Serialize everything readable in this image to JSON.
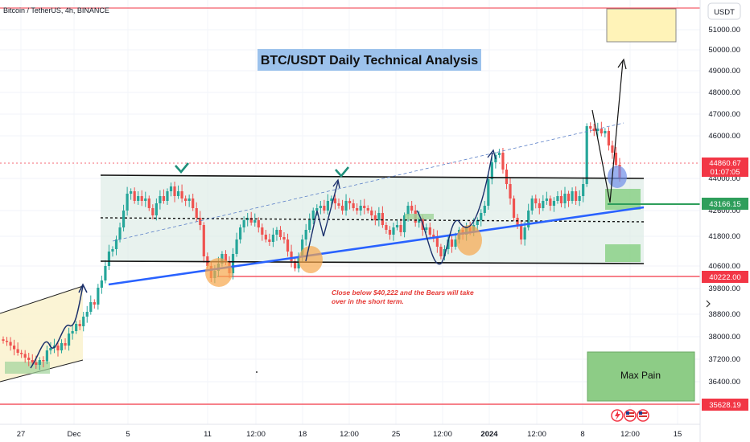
{
  "header": {
    "symbol": "Bitcoin / TetherUS, 4h, BINANCE"
  },
  "title_box": {
    "text": "BTC/USDT Daily Technical Analysis",
    "color": "#9cc2ec"
  },
  "currency_label": "USDT",
  "annotation": {
    "line1": "Close below $40,222 and the Bears will take",
    "line2": "over in the short term.",
    "color": "#e53935"
  },
  "max_pain": {
    "label": "Max Pain",
    "color": "#8dcc86"
  },
  "colors": {
    "up_candle": "#26a69a",
    "down_candle": "#ef5350",
    "support_line": "#2962ff",
    "red_level": "#f23645",
    "green_level": "#2e9e5b",
    "channel_fill": "#d8e9e3"
  },
  "price_labels": {
    "current_price": "44860.67",
    "countdown": "01:07:05",
    "level_green": "43166.15",
    "level_red_mid": "40222.00",
    "level_red_low": "35628.19"
  },
  "icons": [
    "lightning-icon",
    "us-flag-icon",
    "us-flag-icon"
  ],
  "chart_data": {
    "type": "candlestick",
    "interval": "4h",
    "ylim": [
      35000,
      52100
    ],
    "y_ticks": [
      51000,
      50000,
      49000,
      48000,
      47000,
      46000,
      44000,
      42600,
      41800,
      40600,
      39800,
      38800,
      38000,
      37200,
      36400
    ],
    "x_ticks": [
      "27",
      "Dec",
      "5",
      "11",
      "12:00",
      "18",
      "12:00",
      "25",
      "12:00",
      "2024",
      "12:00",
      "8",
      "12:00",
      "15"
    ],
    "levels": [
      {
        "name": "channel top",
        "value_start": 44400,
        "value_end": 44150,
        "color": "#000000"
      },
      {
        "name": "channel bottom",
        "value_start": 40750,
        "value_end": 40600,
        "color": "#000000"
      },
      {
        "name": "channel mid",
        "value_start": 42860,
        "value_end": 42500,
        "color": "#000000"
      },
      {
        "name": "support",
        "value_start": 39900,
        "value_end": 43150,
        "color": "#2962ff"
      },
      {
        "name": "resistance high",
        "value": 52100,
        "color": "#f23645"
      },
      {
        "name": "bear trigger",
        "value": 40222,
        "color": "#f23645"
      },
      {
        "name": "low level",
        "value": 35628.19,
        "color": "#f23645"
      },
      {
        "name": "target",
        "value": 43166.15,
        "color": "#2e9e5b"
      }
    ],
    "close_path": [
      38100,
      38050,
      37900,
      37750,
      37600,
      37550,
      37400,
      37300,
      37200,
      37100,
      37300,
      37250,
      37700,
      37800,
      37900,
      37700,
      38000,
      37900,
      38400,
      38500,
      38800,
      38700,
      39100,
      39300,
      39700,
      39600,
      40300,
      40600,
      41200,
      41800,
      41900,
      42300,
      42800,
      43500,
      44200,
      44300,
      43900,
      44100,
      43900,
      44000,
      43600,
      43300,
      43800,
      44100,
      43900,
      44300,
      44500,
      44100,
      44300,
      44000,
      43900,
      44000,
      43600,
      43200,
      42900,
      41600,
      41200,
      40700,
      41000,
      41300,
      41700,
      41400,
      40900,
      41700,
      42300,
      42800,
      43100,
      43200,
      43000,
      43100,
      42800,
      42500,
      42300,
      42200,
      42500,
      42700,
      42400,
      42300,
      41800,
      41400,
      41100,
      41600,
      42300,
      42700,
      43100,
      43500,
      43600,
      43700,
      43500,
      43900,
      44000,
      43800,
      43700,
      43500,
      43900,
      43800,
      43600,
      43500,
      43700,
      43600,
      43500,
      43300,
      43100,
      43400,
      42900,
      42700,
      42500,
      42800,
      42900,
      42600,
      43300,
      43700,
      43500,
      43000,
      43200,
      42700,
      42800,
      42500,
      42400,
      42000,
      41600,
      41900,
      42300,
      42000,
      42300,
      42700,
      42500,
      42800,
      42600,
      42900,
      43100,
      43400,
      43700,
      44800,
      45500,
      45800,
      45900,
      45200,
      44600,
      44000,
      43200,
      42900,
      42300,
      42800,
      43500,
      44000,
      43800,
      43600,
      43900,
      44000,
      43700,
      43900,
      44100,
      43800,
      44200,
      43900,
      44300,
      43900,
      44100,
      44600,
      47000,
      46900,
      46800,
      46900,
      46700,
      46800,
      46200,
      45900,
      45400,
      44860.67
    ]
  }
}
